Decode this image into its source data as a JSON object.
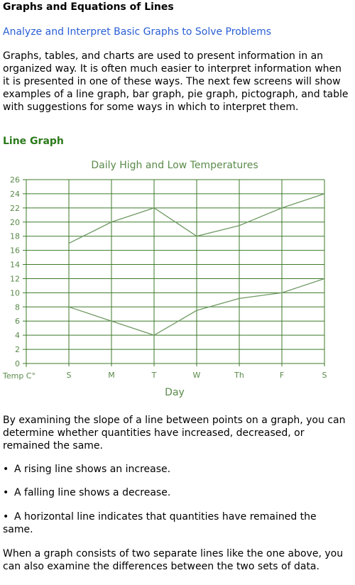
{
  "page": {
    "title": "Graphs and Equations of Lines",
    "subtitle": "Analyze and Interpret Basic Graphs to Solve Problems",
    "intro": "Graphs, tables, and charts are used to present information in an organized way. It is often much easier to interpret information when it is presented in one of these ways. The next few screens will show examples of a line graph, bar graph, pie graph, pictograph, and table with suggestions for some ways in which to interpret them.",
    "section_heading": "Line Graph",
    "slope_text": "By examining the slope of a line between points on a graph, you can determine whether quantities have increased, decreased, or remained the same.",
    "bullets": [
      "A rising line shows an increase.",
      "A falling line shows a decrease.",
      "A horizontal line indicates that quantities have remained the same."
    ],
    "closing_text": "When a graph consists of two separate lines like the one above, you can also examine the differences between the two sets of data."
  },
  "colors": {
    "link": "#2a5fd6",
    "heading_green": "#2c7a1c",
    "grid_green": "#3d7a2a",
    "line_green": "#6f9a63",
    "axis_text": "#5a8a4a"
  },
  "chart_data": {
    "type": "line",
    "title": "Daily High and Low Temperatures",
    "xlabel": "Day",
    "ylabel": "Temp C°",
    "categories": [
      "S",
      "M",
      "T",
      "W",
      "Th",
      "F",
      "S"
    ],
    "ylim": [
      0,
      26
    ],
    "yticks": [
      0,
      2,
      4,
      6,
      8,
      10,
      12,
      14,
      16,
      18,
      20,
      22,
      24,
      26
    ],
    "grid": true,
    "series": [
      {
        "values": [
          17,
          20,
          22,
          18,
          19.5,
          22,
          24
        ]
      },
      {
        "values": [
          8,
          6,
          4,
          7.5,
          9.2,
          10,
          12
        ]
      }
    ]
  }
}
